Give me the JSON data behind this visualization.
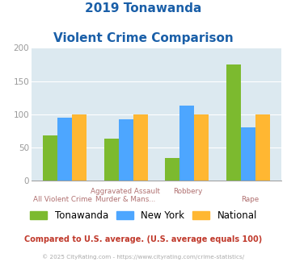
{
  "title_line1": "2019 Tonawanda",
  "title_line2": "Violent Crime Comparison",
  "series": {
    "Tonawanda": [
      68,
      63,
      35,
      175
    ],
    "New York": [
      95,
      92,
      113,
      80
    ],
    "National": [
      100,
      100,
      100,
      100
    ]
  },
  "colors": {
    "Tonawanda": "#7cba2f",
    "New York": "#4da6ff",
    "National": "#ffb732"
  },
  "ylim": [
    0,
    200
  ],
  "yticks": [
    0,
    50,
    100,
    150,
    200
  ],
  "background_color": "#dce9f0",
  "plot_bg": "#dce9f0",
  "title_color": "#1a5fa8",
  "xtick_color": "#b07070",
  "ytick_color": "#999999",
  "subtitle_text": "Compared to U.S. average. (U.S. average equals 100)",
  "subtitle_color": "#c0392b",
  "footer_text": "© 2025 CityRating.com - https://www.cityrating.com/crime-statistics/",
  "footer_color": "#aaaaaa",
  "legend_items": [
    "Tonawanda",
    "New York",
    "National"
  ],
  "x_top_labels": [
    "",
    "Aggravated Assault",
    "",
    "Robbery",
    "",
    ""
  ],
  "x_bot_labels": [
    "All Violent Crime",
    "Murder & Mans...",
    "",
    "Rape"
  ],
  "n_cats": 4
}
